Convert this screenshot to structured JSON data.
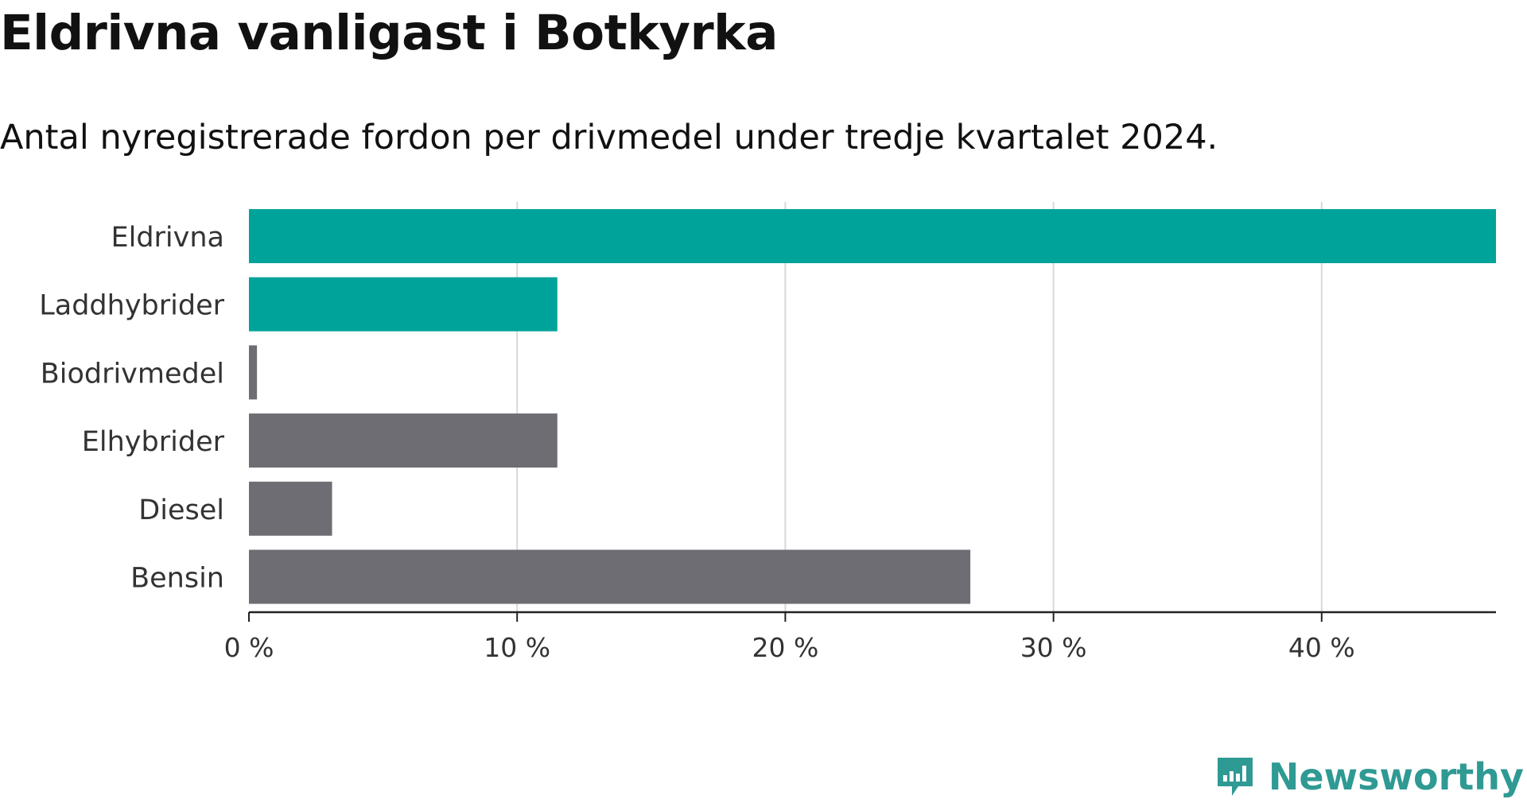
{
  "title": "Eldrivna vanligast i Botkyrka",
  "subtitle": "Antal nyregistrerade fordon per drivmedel under tredje kvartalet 2024.",
  "brand": {
    "name": "Newsworthy",
    "icon": "newsworthy-logo-icon",
    "color": "#2f9a93"
  },
  "colors": {
    "highlight": "#00a39a",
    "default": "#6d6d73",
    "grid": "#d8d8d8",
    "axis": "#222222"
  },
  "chart_data": {
    "type": "bar",
    "orientation": "horizontal",
    "categories": [
      "Eldrivna",
      "Laddhybrider",
      "Biodrivmedel",
      "Elhybrider",
      "Diesel",
      "Bensin"
    ],
    "values": [
      46.5,
      11.5,
      0.3,
      11.5,
      3.1,
      26.9
    ],
    "highlighted": [
      true,
      true,
      false,
      false,
      false,
      false
    ],
    "xlim": [
      0,
      46.5
    ],
    "xticks": [
      0,
      10,
      20,
      30,
      40
    ],
    "xtick_labels": [
      "0 %",
      "10 %",
      "20 %",
      "30 %",
      "40 %"
    ],
    "grid": true
  }
}
